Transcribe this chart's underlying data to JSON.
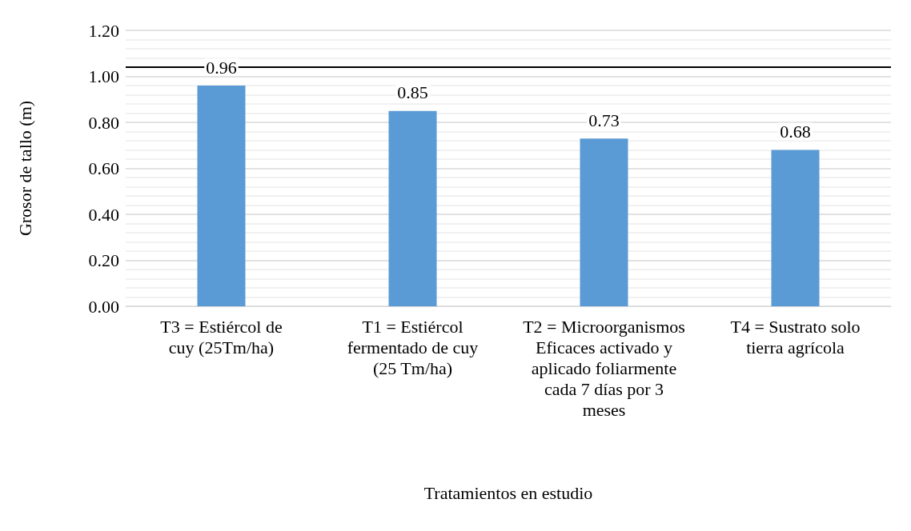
{
  "chart_data": {
    "type": "bar",
    "xlabel": "Tratamientos en estudio",
    "ylabel": "Grosor de tallo (m)",
    "categories": [
      "T3 = Estiércol de cuy (25Tm/ha)",
      "T1 = Estiércol fermentado de cuy (25 Tm/ha)",
      "T2 = Microorganismos Eficaces activado y aplicado foliarmente cada 7 días por 3 meses",
      "T4 = Sustrato solo tierra agrícola"
    ],
    "values": [
      0.96,
      0.85,
      0.73,
      0.68
    ],
    "color": "#5b9bd5",
    "ylim": [
      0,
      1.2
    ],
    "yticks": [
      {
        "value": 0,
        "label": "0.00"
      },
      {
        "value": 0.2,
        "label": "0.20"
      },
      {
        "value": 0.4,
        "label": "0.40"
      },
      {
        "value": 0.6,
        "label": "0.60"
      },
      {
        "value": 0.8,
        "label": "0.80"
      },
      {
        "value": 1.0,
        "label": "1.00"
      },
      {
        "value": 1.2,
        "label": "1.20"
      }
    ],
    "grid": "y",
    "data_labels": true,
    "ref_lines": [
      {
        "axis": "y",
        "value": 1.04,
        "color": "#000000"
      }
    ]
  }
}
